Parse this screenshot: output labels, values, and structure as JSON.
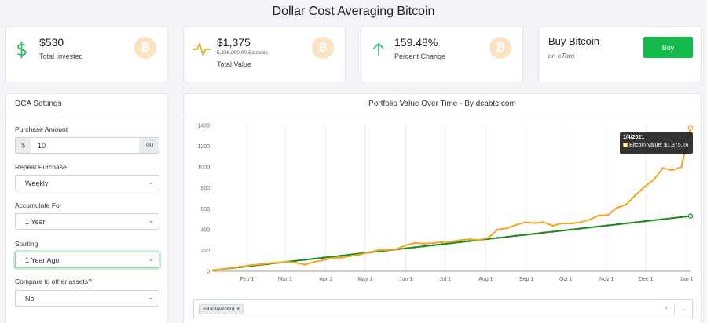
{
  "page": {
    "title": "Dollar Cost Averaging Bitcoin"
  },
  "colors": {
    "accent_green": "#13b94a",
    "bitcoin_orange": "#f5a623",
    "invested_green": "#1e8a1e"
  },
  "stats": {
    "invested": {
      "value": "$530",
      "label": "Total Invested",
      "icon": "dollar-icon"
    },
    "total_value": {
      "value": "$1,375",
      "sub": "5,226,000.00 Satoshis",
      "label": "Total Value",
      "icon": "pulse-icon"
    },
    "percent": {
      "value": "159.48%",
      "label": "Percent Change",
      "icon": "arrow-up-icon"
    }
  },
  "buy": {
    "title": "Buy Bitcoin",
    "sub": "on eToro",
    "button": "Buy"
  },
  "settings": {
    "title": "DCA Settings",
    "purchase_amount": {
      "label": "Purchase Amount",
      "prefix": "$",
      "value": "10",
      "suffix": ".00"
    },
    "repeat": {
      "label": "Repeat Purchase",
      "value": "Weekly"
    },
    "accumulate": {
      "label": "Accumulate For",
      "value": "1 Year"
    },
    "starting": {
      "label": "Starting",
      "value": "1 Year Ago"
    },
    "compare": {
      "label": "Compare to other assets?",
      "value": "No"
    }
  },
  "chart": {
    "title": "Portfolio Value Over Time - By dcabtc.com",
    "tooltip": {
      "date": "1/4/2021",
      "label": "Bitcoin Value: $1,375.26"
    },
    "select_chip": "Total Invested"
  },
  "chart_data": {
    "type": "line",
    "title": "Portfolio Value Over Time - By dcabtc.com",
    "y_ticks": [
      0,
      200,
      400,
      600,
      800,
      1000,
      1200,
      1400
    ],
    "ylim": [
      0,
      1400
    ],
    "x_ticks": [
      "Feb 1",
      "Mar 1",
      "Apr 1",
      "May 1",
      "Jun 1",
      "Jul 1",
      "Aug 1",
      "Sep 1",
      "Oct 1",
      "Nov 1",
      "Dec 1",
      "Jan 1"
    ],
    "x_range": [
      "2020-01-06",
      "2021-01-04"
    ],
    "grid": "vertical",
    "series": [
      {
        "name": "Total Invested",
        "color": "#1e8a1e",
        "x": [
          "2020-01-06",
          "2020-01-13",
          "2020-01-20",
          "2020-01-27",
          "2020-02-03",
          "2020-02-10",
          "2020-02-17",
          "2020-02-24",
          "2020-03-02",
          "2020-03-09",
          "2020-03-16",
          "2020-03-23",
          "2020-03-30",
          "2020-04-06",
          "2020-04-13",
          "2020-04-20",
          "2020-04-27",
          "2020-05-04",
          "2020-05-11",
          "2020-05-18",
          "2020-05-25",
          "2020-06-01",
          "2020-06-08",
          "2020-06-15",
          "2020-06-22",
          "2020-06-29",
          "2020-07-06",
          "2020-07-13",
          "2020-07-20",
          "2020-07-27",
          "2020-08-03",
          "2020-08-10",
          "2020-08-17",
          "2020-08-24",
          "2020-08-31",
          "2020-09-07",
          "2020-09-14",
          "2020-09-21",
          "2020-09-28",
          "2020-10-05",
          "2020-10-12",
          "2020-10-19",
          "2020-10-26",
          "2020-11-02",
          "2020-11-09",
          "2020-11-16",
          "2020-11-23",
          "2020-11-30",
          "2020-12-07",
          "2020-12-14",
          "2020-12-21",
          "2020-12-28",
          "2021-01-04"
        ],
        "values": [
          10,
          20,
          30,
          40,
          50,
          60,
          70,
          80,
          90,
          100,
          110,
          120,
          130,
          140,
          150,
          160,
          170,
          180,
          190,
          200,
          210,
          220,
          230,
          240,
          250,
          260,
          270,
          280,
          290,
          300,
          310,
          320,
          330,
          340,
          350,
          360,
          370,
          380,
          390,
          400,
          410,
          420,
          430,
          440,
          450,
          460,
          470,
          480,
          490,
          500,
          510,
          520,
          530
        ]
      },
      {
        "name": "Bitcoin Value",
        "color": "#f5a623",
        "x": [
          "2020-01-06",
          "2020-01-13",
          "2020-01-20",
          "2020-01-27",
          "2020-02-03",
          "2020-02-10",
          "2020-02-17",
          "2020-02-24",
          "2020-03-02",
          "2020-03-09",
          "2020-03-16",
          "2020-03-23",
          "2020-03-30",
          "2020-04-06",
          "2020-04-13",
          "2020-04-20",
          "2020-04-27",
          "2020-05-04",
          "2020-05-11",
          "2020-05-18",
          "2020-05-25",
          "2020-06-01",
          "2020-06-08",
          "2020-06-15",
          "2020-06-22",
          "2020-06-29",
          "2020-07-06",
          "2020-07-13",
          "2020-07-20",
          "2020-07-27",
          "2020-08-03",
          "2020-08-10",
          "2020-08-17",
          "2020-08-24",
          "2020-08-31",
          "2020-09-07",
          "2020-09-14",
          "2020-09-21",
          "2020-09-28",
          "2020-10-05",
          "2020-10-12",
          "2020-10-19",
          "2020-10-26",
          "2020-11-02",
          "2020-11-09",
          "2020-11-16",
          "2020-11-23",
          "2020-11-30",
          "2020-12-07",
          "2020-12-14",
          "2020-12-21",
          "2020-12-28",
          "2021-01-04"
        ],
        "values": [
          10,
          21,
          33,
          44,
          57,
          66,
          76,
          83,
          90,
          82,
          64,
          88,
          108,
          125,
          131,
          147,
          160,
          181,
          203,
          204,
          212,
          249,
          272,
          265,
          271,
          281,
          285,
          299,
          307,
          300,
          322,
          400,
          413,
          445,
          470,
          462,
          470,
          437,
          459,
          459,
          470,
          495,
          535,
          540,
          610,
          640,
          730,
          810,
          880,
          990,
          970,
          1000,
          1375
        ]
      }
    ]
  }
}
